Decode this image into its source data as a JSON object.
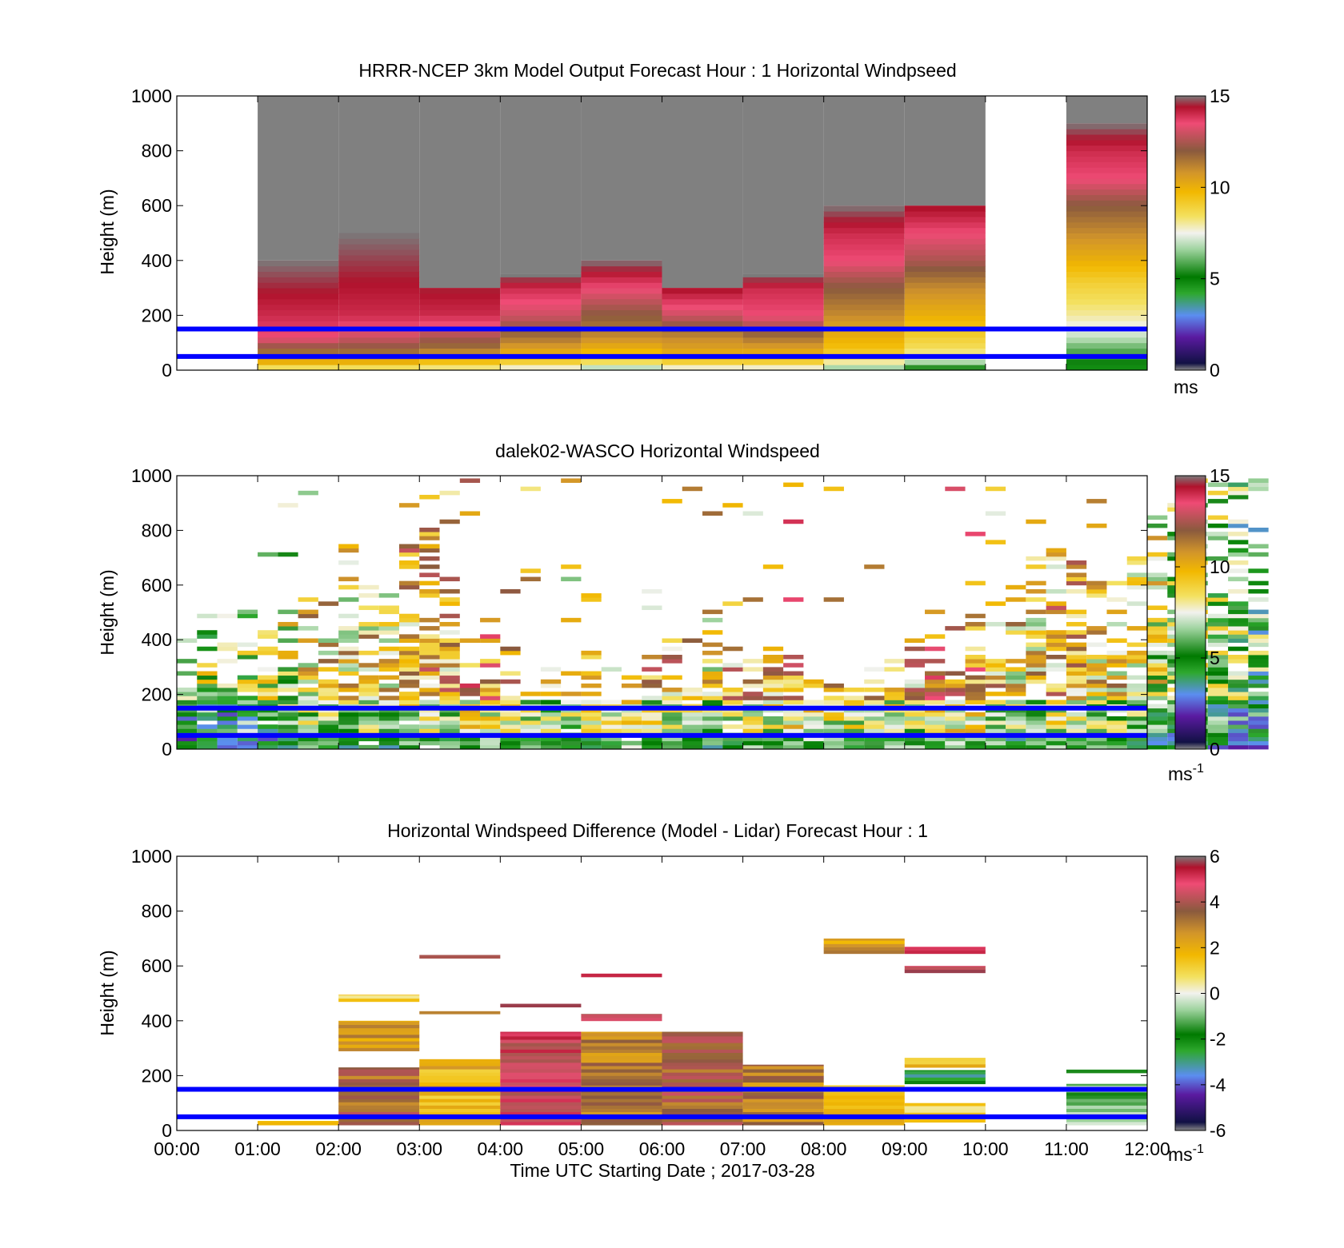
{
  "figure": {
    "xlabel": "Time UTC  Starting Date ; 2017-03-28",
    "x_ticks": [
      "00:00",
      "01:00",
      "02:00",
      "03:00",
      "04:00",
      "05:00",
      "06:00",
      "07:00",
      "08:00",
      "09:00",
      "10:00",
      "11:00",
      "12:00"
    ],
    "reference_heights_m": [
      50,
      150
    ],
    "reference_line_color": "#0000ff"
  },
  "chart_data": [
    {
      "type": "heatmap",
      "title": "HRRR-NCEP 3km Model Output   Forecast Hour : 1 Horizontal Windpseed",
      "ylabel": "Height (m)",
      "xlim": [
        0,
        12
      ],
      "ylim": [
        0,
        1000
      ],
      "y_ticks": [
        "0",
        "200",
        "400",
        "600",
        "800",
        "1000"
      ],
      "colorbar": {
        "min": 0,
        "max": 15,
        "ticks": [
          "0",
          "5",
          "10",
          "15"
        ],
        "unit": "ms",
        "unit_sup": ""
      },
      "above_model_top_color": "#808080",
      "columns": [
        {
          "t0": 1,
          "t1": 2,
          "top": 400,
          "profile": [
            [
              0,
              7.5
            ],
            [
              20,
              9.5
            ],
            [
              40,
              10.5
            ],
            [
              80,
              12
            ],
            [
              120,
              13.5
            ],
            [
              200,
              14
            ],
            [
              300,
              14.5
            ],
            [
              400,
              15
            ]
          ]
        },
        {
          "t0": 2,
          "t1": 3,
          "top": 500,
          "profile": [
            [
              0,
              7.5
            ],
            [
              20,
              9.5
            ],
            [
              40,
              10.5
            ],
            [
              80,
              12
            ],
            [
              120,
              13
            ],
            [
              200,
              14
            ],
            [
              350,
              14.5
            ],
            [
              500,
              15
            ]
          ]
        },
        {
          "t0": 3,
          "t1": 4,
          "top": 300,
          "profile": [
            [
              0,
              7.5
            ],
            [
              20,
              9
            ],
            [
              40,
              10
            ],
            [
              80,
              11.5
            ],
            [
              120,
              12.5
            ],
            [
              200,
              14
            ],
            [
              300,
              14.5
            ]
          ]
        },
        {
          "t0": 4,
          "t1": 5,
          "top": 350,
          "profile": [
            [
              0,
              7
            ],
            [
              20,
              8.5
            ],
            [
              40,
              9.5
            ],
            [
              80,
              10.5
            ],
            [
              120,
              11.5
            ],
            [
              200,
              13
            ],
            [
              300,
              14
            ],
            [
              350,
              15
            ]
          ]
        },
        {
          "t0": 5,
          "t1": 6,
          "top": 400,
          "profile": [
            [
              0,
              6
            ],
            [
              20,
              8
            ],
            [
              40,
              9
            ],
            [
              80,
              10
            ],
            [
              120,
              11
            ],
            [
              200,
              12
            ],
            [
              300,
              13.5
            ],
            [
              400,
              15
            ]
          ]
        },
        {
          "t0": 6,
          "t1": 7,
          "top": 300,
          "profile": [
            [
              0,
              7
            ],
            [
              20,
              8.5
            ],
            [
              40,
              9.5
            ],
            [
              80,
              10.5
            ],
            [
              120,
              11
            ],
            [
              200,
              13
            ],
            [
              300,
              14.5
            ]
          ]
        },
        {
          "t0": 7,
          "t1": 8,
          "top": 350,
          "profile": [
            [
              0,
              7
            ],
            [
              20,
              8.5
            ],
            [
              40,
              9.5
            ],
            [
              80,
              10.5
            ],
            [
              120,
              11.5
            ],
            [
              200,
              13.5
            ],
            [
              300,
              14
            ],
            [
              350,
              15
            ]
          ]
        },
        {
          "t0": 8,
          "t1": 9,
          "top": 600,
          "profile": [
            [
              0,
              6
            ],
            [
              20,
              7.5
            ],
            [
              40,
              8.5
            ],
            [
              80,
              9.5
            ],
            [
              120,
              10
            ],
            [
              200,
              11
            ],
            [
              300,
              12
            ],
            [
              400,
              13.5
            ],
            [
              500,
              14
            ],
            [
              600,
              15
            ]
          ]
        },
        {
          "t0": 9,
          "t1": 10,
          "top": 600,
          "profile": [
            [
              0,
              5
            ],
            [
              20,
              6
            ],
            [
              40,
              7.5
            ],
            [
              80,
              8.5
            ],
            [
              120,
              9
            ],
            [
              200,
              10
            ],
            [
              300,
              11
            ],
            [
              400,
              12.5
            ],
            [
              500,
              13.5
            ],
            [
              600,
              14.5
            ]
          ]
        },
        {
          "t0": 11,
          "t1": 12,
          "top": 900,
          "profile": [
            [
              0,
              4.5
            ],
            [
              20,
              5
            ],
            [
              40,
              5.5
            ],
            [
              80,
              6
            ],
            [
              120,
              7
            ],
            [
              160,
              7.5
            ],
            [
              200,
              8
            ],
            [
              260,
              8.5
            ],
            [
              320,
              9
            ],
            [
              400,
              10
            ],
            [
              500,
              11
            ],
            [
              600,
              12
            ],
            [
              700,
              13.5
            ],
            [
              800,
              14
            ],
            [
              900,
              15
            ]
          ]
        }
      ]
    },
    {
      "type": "heatmap",
      "title": "dalek02-WASCO  Horizontal Windspeed",
      "ylabel": "Height (m)",
      "xlim": [
        0,
        12
      ],
      "ylim": [
        0,
        1000
      ],
      "y_ticks": [
        "0",
        "200",
        "400",
        "600",
        "800",
        "1000"
      ],
      "colorbar": {
        "min": 0,
        "max": 15,
        "ticks": [
          "0",
          "5",
          "10",
          "15"
        ],
        "unit": "ms",
        "unit_sup": "-1"
      },
      "column_hours": 0.25,
      "gate_m": 15,
      "coverage_m": [
        400,
        550,
        400,
        500,
        450,
        500,
        550,
        400,
        750,
        600,
        650,
        750,
        800,
        700,
        450,
        400,
        350,
        300,
        300,
        300,
        350,
        300,
        300,
        350,
        400,
        400,
        500,
        400,
        350,
        400,
        350,
        300,
        350,
        300,
        300,
        350,
        400,
        500,
        500,
        550,
        600,
        600,
        700,
        750,
        700,
        600,
        650,
        700,
        850,
        900,
        1000,
        1000,
        1000,
        1000
      ],
      "speed_m_s": [
        6,
        7,
        6,
        7,
        7,
        8,
        9,
        9,
        9,
        9,
        9,
        10,
        10,
        10,
        11,
        11,
        10,
        9,
        9,
        9,
        10,
        10,
        11,
        10,
        10,
        9,
        9,
        10,
        10,
        10,
        11,
        11,
        10,
        10,
        10,
        10,
        10,
        11,
        11,
        11,
        10,
        9,
        9,
        10,
        10,
        9,
        9,
        8,
        8,
        7,
        7,
        7,
        6,
        6
      ]
    },
    {
      "type": "heatmap",
      "title": "Horizontal Windspeed Difference (Model - Lidar) Forecast Hour : 1",
      "ylabel": "Height (m)",
      "xlabel": "Time UTC  Starting Date ; 2017-03-28",
      "xlim": [
        0,
        12
      ],
      "ylim": [
        0,
        1000
      ],
      "y_ticks": [
        "0",
        "200",
        "400",
        "600",
        "800",
        "1000"
      ],
      "colorbar": {
        "min": -6,
        "max": 6,
        "ticks": [
          "-6",
          "-4",
          "-2",
          "0",
          "2",
          "4",
          "6"
        ],
        "unit": "ms",
        "unit_sup": "-1"
      },
      "blocks": [
        {
          "t0": 1,
          "t1": 2,
          "h0": 20,
          "h1": 35,
          "value": 1.5
        },
        {
          "t0": 2,
          "t1": 3,
          "h0": 20,
          "h1": 230,
          "value": 3.5
        },
        {
          "t0": 2,
          "t1": 3,
          "h0": 290,
          "h1": 400,
          "value": 2.5
        },
        {
          "t0": 2,
          "t1": 3,
          "h0": 470,
          "h1": 495,
          "value": 1.2
        },
        {
          "t0": 3,
          "t1": 4,
          "h0": 20,
          "h1": 260,
          "value": 1.8
        },
        {
          "t0": 3,
          "t1": 4,
          "h0": 425,
          "h1": 435,
          "value": 2.5
        },
        {
          "t0": 3,
          "t1": 4,
          "h0": 628,
          "h1": 640,
          "value": 3.5
        },
        {
          "t0": 4,
          "t1": 5,
          "h0": 20,
          "h1": 360,
          "value": 4.6
        },
        {
          "t0": 4,
          "t1": 5,
          "h0": 450,
          "h1": 462,
          "value": 5.2
        },
        {
          "t0": 5,
          "t1": 6,
          "h0": 20,
          "h1": 360,
          "value": 3
        },
        {
          "t0": 5,
          "t1": 6,
          "h0": 400,
          "h1": 425,
          "value": 4
        },
        {
          "t0": 5,
          "t1": 6,
          "h0": 560,
          "h1": 572,
          "value": 4.7
        },
        {
          "t0": 6,
          "t1": 7,
          "h0": 20,
          "h1": 360,
          "value": 3.6
        },
        {
          "t0": 7,
          "t1": 8,
          "h0": 20,
          "h1": 240,
          "value": 3
        },
        {
          "t0": 8,
          "t1": 9,
          "h0": 20,
          "h1": 165,
          "value": 1.5
        },
        {
          "t0": 8,
          "t1": 9,
          "h0": 645,
          "h1": 700,
          "value": 2.5
        },
        {
          "t0": 9,
          "t1": 10,
          "h0": 30,
          "h1": 100,
          "value": 1
        },
        {
          "t0": 9,
          "t1": 10,
          "h0": 170,
          "h1": 220,
          "value": -2.5
        },
        {
          "t0": 9,
          "t1": 10,
          "h0": 230,
          "h1": 265,
          "value": 1.5
        },
        {
          "t0": 9,
          "t1": 10,
          "h0": 575,
          "h1": 600,
          "value": 5
        },
        {
          "t0": 9,
          "t1": 10,
          "h0": 645,
          "h1": 670,
          "value": 4.5
        },
        {
          "t0": 11,
          "t1": 12,
          "h0": 20,
          "h1": 170,
          "value": -1
        },
        {
          "t0": 11,
          "t1": 12,
          "h0": 210,
          "h1": 222,
          "value": -2.5
        }
      ]
    }
  ]
}
